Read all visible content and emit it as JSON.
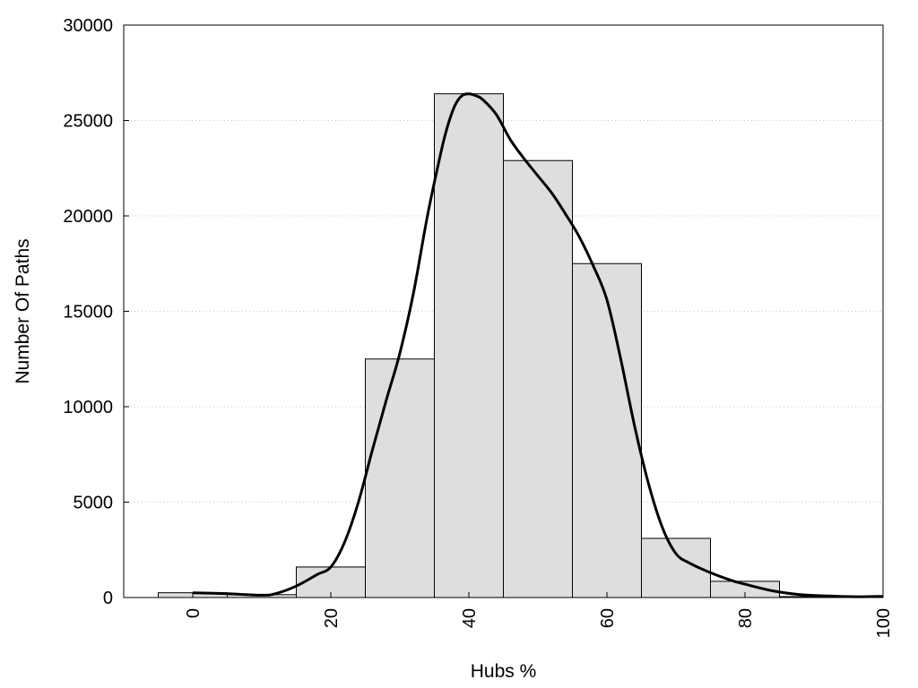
{
  "chart_data": {
    "type": "bar",
    "title": "",
    "xlabel": "Hubs %",
    "ylabel": "Number Of Paths",
    "xlim": [
      -10,
      100
    ],
    "ylim": [
      0,
      30000
    ],
    "x_ticks": [
      "0",
      "20",
      "40",
      "60",
      "80",
      "100"
    ],
    "y_ticks": [
      "0",
      "5000",
      "10000",
      "15000",
      "20000",
      "25000",
      "30000"
    ],
    "grid": "horizontal dotted",
    "legend": "none",
    "bars": [
      {
        "x_start": -5,
        "x_end": 5,
        "value": 250
      },
      {
        "x_start": 5,
        "x_end": 15,
        "value": 150
      },
      {
        "x_start": 15,
        "x_end": 25,
        "value": 1600
      },
      {
        "x_start": 25,
        "x_end": 35,
        "value": 12500
      },
      {
        "x_start": 35,
        "x_end": 45,
        "value": 26400
      },
      {
        "x_start": 45,
        "x_end": 55,
        "value": 22900
      },
      {
        "x_start": 55,
        "x_end": 65,
        "value": 17500
      },
      {
        "x_start": 65,
        "x_end": 75,
        "value": 3100
      },
      {
        "x_start": 75,
        "x_end": 85,
        "value": 850
      },
      {
        "x_start": 85,
        "x_end": 95,
        "value": 50
      },
      {
        "x_start": 95,
        "x_end": 100,
        "value": 10
      }
    ],
    "density_curve": {
      "x": [
        0,
        5,
        10,
        12,
        15,
        18,
        20,
        22,
        24,
        26,
        28,
        30,
        32,
        34,
        36,
        37,
        38,
        39,
        40,
        41,
        42,
        44,
        46,
        48,
        50,
        52,
        54,
        56,
        58,
        60,
        62,
        64,
        66,
        68,
        70,
        72,
        75,
        78,
        80,
        84,
        88,
        92,
        96,
        100
      ],
      "y": [
        250,
        200,
        120,
        200,
        600,
        1200,
        1600,
        2900,
        5000,
        7700,
        10300,
        12800,
        16000,
        20000,
        23400,
        24800,
        25800,
        26300,
        26400,
        26300,
        26100,
        25300,
        24000,
        23000,
        22100,
        21200,
        20100,
        18900,
        17400,
        15600,
        12500,
        9000,
        6000,
        3700,
        2300,
        1800,
        1300,
        900,
        700,
        350,
        150,
        80,
        40,
        60
      ]
    },
    "colors": {
      "bar_fill": "#dedede",
      "bar_stroke": "#000000",
      "curve": "#000000",
      "grid": "#c8c8c8"
    }
  }
}
